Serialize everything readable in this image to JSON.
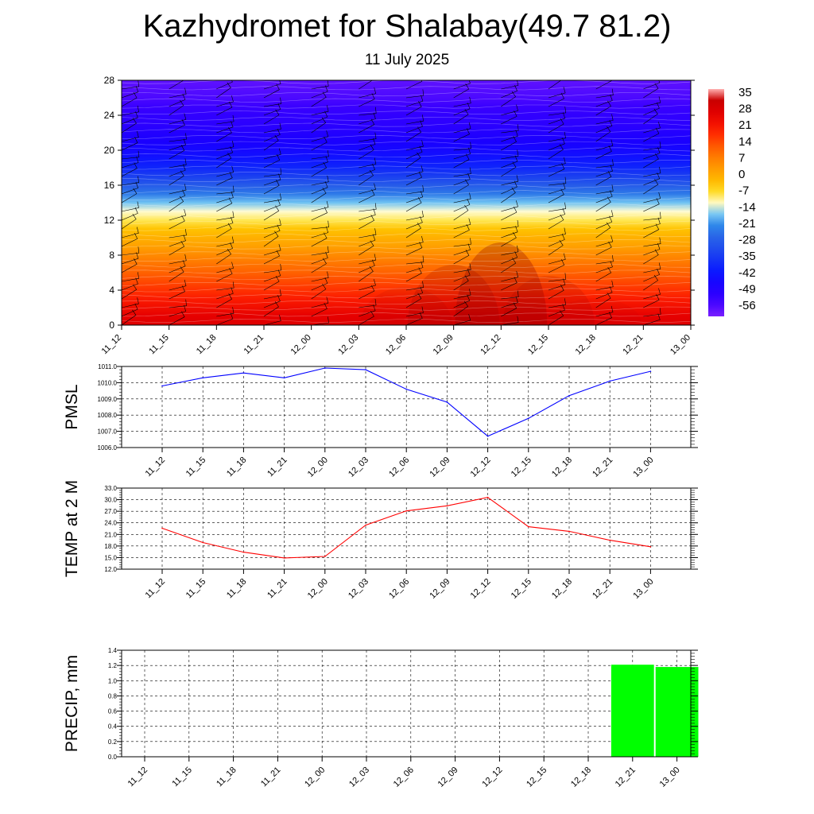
{
  "title": "Kazhydromet for Shalabay(49.7 81.2)",
  "subtitle": "11 July 2025",
  "chart_data": [
    {
      "type": "heatmap",
      "name": "vertical-temperature-wind-section",
      "x": [
        "11_12",
        "11_15",
        "11_18",
        "11_21",
        "12_00",
        "12_03",
        "12_06",
        "12_09",
        "12_12",
        "12_15",
        "12_18",
        "12_21",
        "13_00"
      ],
      "yticks": [
        0,
        4,
        8,
        12,
        16,
        20,
        24,
        28
      ],
      "ylim": [
        0,
        28
      ],
      "colorbar_ticks": [
        35,
        28,
        21,
        14,
        7,
        0,
        -7,
        -14,
        -21,
        -28,
        -35,
        -42,
        -49,
        -56
      ],
      "colorbar_range": [
        -63,
        40
      ],
      "level_temperatures": [
        30,
        28,
        25,
        22,
        19,
        16,
        13,
        10,
        7,
        3,
        0,
        -3,
        -8,
        -12,
        -17,
        -23,
        -29,
        -35,
        -40,
        -44,
        -47,
        -49,
        -51,
        -53,
        -54,
        -56,
        -58,
        -59,
        -60
      ],
      "surface_anomaly_by_time": [
        0,
        0,
        -1,
        -2,
        -2,
        0,
        2,
        4,
        6,
        3,
        1,
        0,
        -1
      ],
      "wind_barbs": "present"
    },
    {
      "type": "line",
      "name": "pmsl",
      "ylabel": "PMSL",
      "x": [
        "11_12",
        "11_15",
        "11_18",
        "11_21",
        "12_00",
        "12_03",
        "12_06",
        "12_09",
        "12_12",
        "12_15",
        "12_18",
        "12_21",
        "13_00"
      ],
      "values": [
        1009.8,
        1010.3,
        1010.6,
        1010.3,
        1010.9,
        1010.8,
        1009.6,
        1008.8,
        1006.7,
        1007.8,
        1009.2,
        1010.1,
        1010.7
      ],
      "yticks": [
        "1006.0",
        "1007.0",
        "1008.0",
        "1009.0",
        "1010.0",
        "1011.0"
      ],
      "ylim": [
        1006.0,
        1011.0
      ],
      "color": "#0000ff",
      "grid": true
    },
    {
      "type": "line",
      "name": "temp-2m",
      "ylabel": "TEMP at 2 M",
      "x": [
        "11_12",
        "11_15",
        "11_18",
        "11_21",
        "12_00",
        "12_03",
        "12_06",
        "12_09",
        "12_12",
        "12_15",
        "12_18",
        "12_21",
        "13_00"
      ],
      "values": [
        22.6,
        18.9,
        16.4,
        14.9,
        15.3,
        23.4,
        27.1,
        28.4,
        30.6,
        23.0,
        21.8,
        19.5,
        17.8
      ],
      "yticks": [
        "12.0",
        "15.0",
        "18.0",
        "21.0",
        "24.0",
        "27.0",
        "30.0",
        "33.0"
      ],
      "ylim": [
        12.0,
        33.0
      ],
      "color": "#ff0000",
      "grid": true
    },
    {
      "type": "bar",
      "name": "precip",
      "ylabel": "PRECIP, mm",
      "categories": [
        "11_12",
        "11_15",
        "11_18",
        "11_21",
        "12_00",
        "12_03",
        "12_06",
        "12_09",
        "12_12",
        "12_15",
        "12_18",
        "12_21",
        "13_00"
      ],
      "values": [
        0,
        0,
        0,
        0,
        0,
        0,
        0,
        0,
        0,
        0,
        0,
        1.21,
        1.18
      ],
      "yticks": [
        "0.0",
        "0.2",
        "0.4",
        "0.6",
        "0.8",
        "1.0",
        "1.2",
        "1.4"
      ],
      "ylim": [
        0,
        1.4
      ],
      "color": "#00ff00",
      "grid": true
    }
  ]
}
